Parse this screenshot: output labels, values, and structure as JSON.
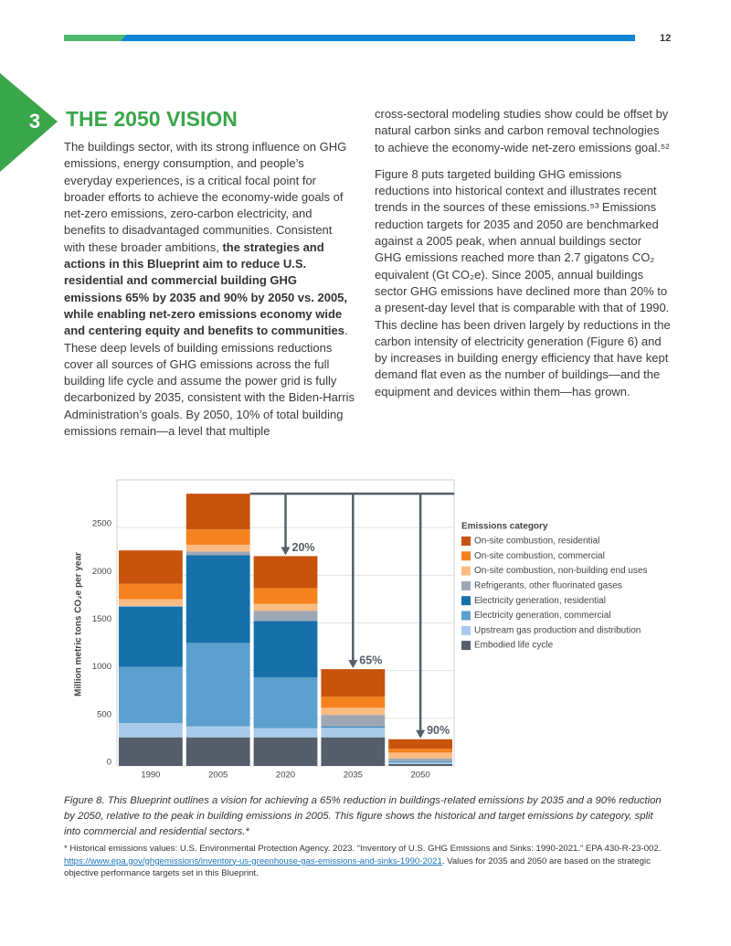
{
  "header": {
    "page_number": "12"
  },
  "section": {
    "number": "3",
    "title": "THE 2050 VISION"
  },
  "body": {
    "left": [
      "The buildings sector, with its strong influence on GHG emissions, energy consumption, and people’s everyday experiences, is a critical focal point for broader efforts to achieve the economy-wide goals of net-zero emissions, zero-carbon electricity, and benefits to disadvantaged communities. Consistent with these broader ambitions, ",
      "the strategies and actions in this Blueprint aim to reduce U.S. residential and commercial building GHG emissions 65% by 2035 and 90% by 2050 vs. 2005, while enabling net-zero emissions economy wide and centering equity and benefits to communities",
      ". These deep levels of building emissions reductions cover all sources of GHG emissions across the full building life cycle and assume the power grid is fully decarbonized by 2035, consistent with the Biden-Harris Administration’s goals. By 2050, 10% of total building emissions remain—a level that multiple"
    ],
    "right": [
      "cross-sectoral modeling studies show could be offset by natural carbon sinks and carbon removal technologies to achieve the economy-wide net-zero emissions goal.⁵²",
      "Figure 8 puts targeted building GHG emissions reductions into historical context and illustrates recent trends in the sources of these emissions.⁵³ Emissions reduction targets for 2035 and 2050 are benchmarked against a 2005 peak, when annual buildings sector GHG emissions reached more than 2.7 gigatons CO₂ equivalent (Gt CO₂e). Since 2005, annual buildings sector GHG emissions have declined more than 20% to a present-day level that is comparable with that of 1990. This decline has been driven largely by reductions in the carbon intensity of electricity generation (Figure 6) and by increases in building energy efficiency that have kept demand flat even as the number of buildings—and the equipment and devices within them—has grown."
    ]
  },
  "chart_data": {
    "type": "stacked_bar",
    "y_label": "Million metric tons CO₂e per year",
    "legend_title": "Emissions category",
    "categories": [
      "1990",
      "2005",
      "2020",
      "2035",
      "2050"
    ],
    "reductions": [
      null,
      null,
      "20%",
      "65%",
      "90%"
    ],
    "ylim": [
      0,
      3000
    ],
    "yticks": [
      0,
      500,
      1000,
      1500,
      2000,
      2500
    ],
    "grid": true,
    "series": [
      {
        "name": "On-site combustion, residential",
        "color": "#c8530c",
        "values": [
          350,
          375,
          335,
          290,
          100
        ]
      },
      {
        "name": "On-site combustion, commercial",
        "color": "#f5821f",
        "values": [
          160,
          160,
          165,
          115,
          40
        ]
      },
      {
        "name": "On-site combustion, non-building end uses",
        "color": "#fbbb82",
        "values": [
          70,
          70,
          75,
          75,
          60
        ]
      },
      {
        "name": "Refrigerants, other fluorinated gases",
        "color": "#9ea8b5",
        "values": [
          10,
          40,
          105,
          120,
          30
        ]
      },
      {
        "name": "Electricity generation, residential",
        "color": "#1670aa",
        "values": [
          630,
          920,
          590,
          10,
          5
        ]
      },
      {
        "name": "Electricity generation, commercial",
        "color": "#5b9fce",
        "values": [
          590,
          875,
          535,
          5,
          10
        ]
      },
      {
        "name": "Upstream gas production and distribution",
        "color": "#a9cbe9",
        "values": [
          150,
          115,
          95,
          100,
          15
        ]
      },
      {
        "name": "Embodied life cycle",
        "color": "#555e6a",
        "values": [
          300,
          300,
          300,
          300,
          20
        ]
      }
    ]
  },
  "caption": "Figure 8. This Blueprint outlines a vision for achieving a 65% reduction in buildings-related emissions by 2035 and a 90% reduction by 2050, relative to the peak in building emissions in 2005. This figure shows the historical and target emissions by category, split into commercial and residential sectors.*",
  "footnote": {
    "before": "* Historical emissions values: U.S. Environmental Protection Agency. 2023. “Inventory of U.S. GHG Emissions and Sinks: 1990-2021.” EPA 430-R-23-002. ",
    "link": "https://www.epa.gov/ghgemissions/inventory-us-greenhouse-gas-emissions-and-sinks-1990-2021",
    "after": ". Values for 2035 and 2050 are based on the strategic objective performance targets set in this Blueprint."
  }
}
